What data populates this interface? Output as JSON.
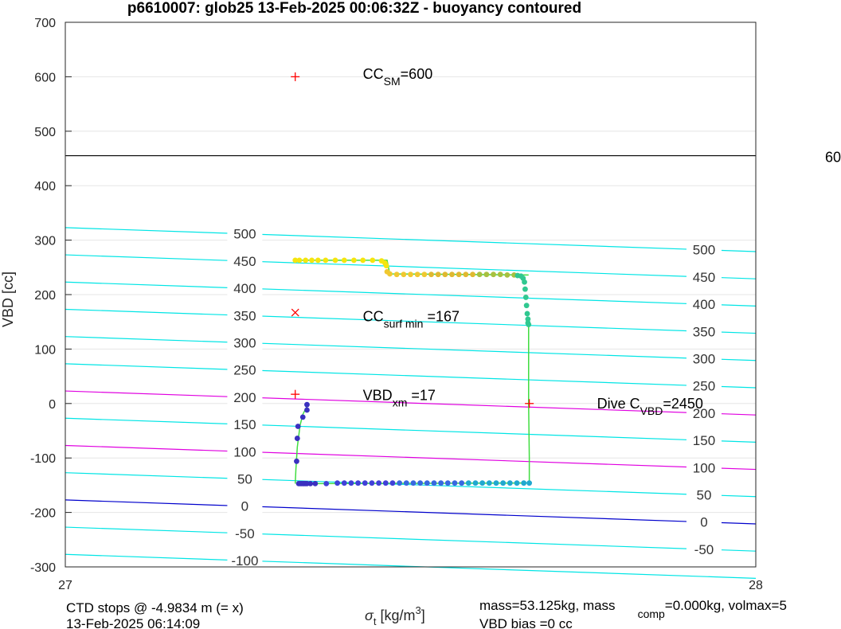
{
  "chart_data": {
    "type": "scatter",
    "title": "p6610007: glob25 13-Feb-2025 00:06:32Z - buoyancy contoured",
    "xlabel": {
      "symbol": "σ",
      "sub": "t",
      "unit_pre": " [kg/m",
      "sup": "3",
      "unit_post": "]"
    },
    "ylabel": "VBD [cc]",
    "xlim": [
      27,
      28
    ],
    "ylim": [
      -300,
      700
    ],
    "xticks": [
      "27",
      "28"
    ],
    "yticks": [
      -300,
      -200,
      -100,
      0,
      100,
      200,
      300,
      400,
      500,
      600,
      700
    ],
    "grid": true,
    "horizontal_line": {
      "y": 455,
      "right_label": "60"
    },
    "contours": [
      {
        "level": "500",
        "y_left": 323,
        "y_right": 279,
        "color": "#00e5e5"
      },
      {
        "level": "450",
        "y_left": 273,
        "y_right": 229,
        "color": "#00e5e5"
      },
      {
        "level": "400",
        "y_left": 223,
        "y_right": 179,
        "color": "#00e5e5"
      },
      {
        "level": "350",
        "y_left": 173,
        "y_right": 129,
        "color": "#00e5e5"
      },
      {
        "level": "300",
        "y_left": 123,
        "y_right": 79,
        "color": "#00e5e5"
      },
      {
        "level": "250",
        "y_left": 73,
        "y_right": 29,
        "color": "#00e5e5"
      },
      {
        "level": "200",
        "y_left": 23,
        "y_right": -21,
        "color": "#e000e0"
      },
      {
        "level": "150",
        "y_left": -27,
        "y_right": -71,
        "color": "#00e5e5"
      },
      {
        "level": "100",
        "y_left": -77,
        "y_right": -121,
        "color": "#e000e0"
      },
      {
        "level": "50",
        "y_left": -127,
        "y_right": -171,
        "color": "#00e5e5"
      },
      {
        "level": "0",
        "y_left": -177,
        "y_right": -221,
        "color": "#0000cc"
      },
      {
        "level": "-50",
        "y_left": -227,
        "y_right": -271,
        "color": "#00e5e5"
      },
      {
        "level": "-100",
        "y_left": -277,
        "y_right": -321,
        "color": "#00e5e5"
      }
    ],
    "contour_label_x": [
      27.26,
      27.925
    ],
    "markers": [
      {
        "x": 27.333,
        "y": 600,
        "symbol": "+",
        "color": "#ff0000"
      },
      {
        "x": 27.333,
        "y": 167,
        "symbol": "x",
        "color": "#ff0000"
      },
      {
        "x": 27.333,
        "y": 17,
        "symbol": "+",
        "color": "#ff0000"
      },
      {
        "x": 27.672,
        "y": 0,
        "symbol": "+",
        "color": "#ff0000"
      }
    ],
    "annotations": [
      {
        "x": 27.431,
        "y": 605,
        "main": "CC",
        "sub": "SM",
        "rest": "=600"
      },
      {
        "x": 27.431,
        "y": 160,
        "main": "CC",
        "sub": "surf min",
        "rest": " =167"
      },
      {
        "x": 27.431,
        "y": 15,
        "main": "VBD",
        "sub": "xm",
        "rest": " =17"
      },
      {
        "x": 27.77,
        "y": 0,
        "main": "Dive C",
        "sub": "VBD",
        "rest": "=2450"
      }
    ],
    "series": [
      {
        "x": [
          27.333,
          27.339,
          27.348,
          27.357,
          27.366,
          27.377,
          27.391,
          27.404,
          27.418,
          27.431,
          27.445,
          27.458,
          27.463,
          27.465
        ],
        "y": [
          263,
          263,
          263,
          263,
          263,
          263,
          263,
          263,
          263,
          263,
          263,
          262,
          258,
          253
        ],
        "color": "#f5e50e"
      },
      {
        "x": [
          27.466,
          27.47,
          27.48,
          27.49,
          27.5,
          27.51,
          27.52
        ],
        "y": [
          242,
          238,
          237,
          237,
          237,
          237,
          237
        ],
        "color": "#f0c830"
      },
      {
        "x": [
          27.53,
          27.54,
          27.55,
          27.56,
          27.57,
          27.58,
          27.59
        ],
        "y": [
          237,
          237,
          237,
          237,
          237,
          237,
          237
        ],
        "color": "#e0b830"
      },
      {
        "x": [
          27.6,
          27.61,
          27.62,
          27.63,
          27.64,
          27.65
        ],
        "y": [
          237,
          237,
          237,
          237,
          236,
          236
        ],
        "color": "#a8c040"
      },
      {
        "x": [
          27.655,
          27.66,
          27.663,
          27.665,
          27.666,
          27.667,
          27.668,
          27.669,
          27.67,
          27.67,
          27.671
        ],
        "y": [
          235,
          234,
          230,
          223,
          210,
          195,
          180,
          165,
          155,
          148,
          145
        ],
        "color": "#30c890"
      },
      {
        "x": [
          27.338,
          27.34,
          27.342,
          27.344,
          27.346,
          27.348,
          27.35,
          27.355,
          27.362
        ],
        "y": [
          -147,
          -147,
          -147,
          -147,
          -147,
          -147,
          -147,
          -147,
          -147
        ],
        "color": "#3a30c0"
      },
      {
        "x": [
          27.335,
          27.336,
          27.337,
          27.344,
          27.35,
          27.35
        ],
        "y": [
          -106,
          -64,
          -42,
          -25,
          -2,
          -12
        ],
        "color": "#3a30c0"
      },
      {
        "x": [
          27.378,
          27.394,
          27.404,
          27.414,
          27.424,
          27.434,
          27.444,
          27.454,
          27.464,
          27.474
        ],
        "y": [
          -147,
          -146,
          -146,
          -146,
          -146,
          -146,
          -146,
          -146,
          -146,
          -146
        ],
        "color": "#4040d8"
      },
      {
        "x": [
          27.484,
          27.494,
          27.504,
          27.514,
          27.524,
          27.534,
          27.544,
          27.554,
          27.564,
          27.574
        ],
        "y": [
          -146,
          -146,
          -146,
          -146,
          -146,
          -146,
          -146,
          -146,
          -146,
          -146
        ],
        "color": "#3868e0"
      },
      {
        "x": [
          27.584,
          27.594,
          27.604,
          27.614,
          27.624,
          27.634,
          27.644,
          27.654,
          27.664,
          27.672
        ],
        "y": [
          -146,
          -146,
          -146,
          -146,
          -146,
          -146,
          -146,
          -146,
          -146,
          -146
        ],
        "color": "#20a8d0"
      }
    ],
    "path_lines": [
      {
        "x": [
          27.671,
          27.671,
          27.672,
          27.672
        ],
        "y": [
          145,
          0,
          -100,
          -146
        ],
        "color": "#40dd40"
      },
      {
        "x": [
          27.333,
          27.334,
          27.336,
          27.34,
          27.344,
          27.35
        ],
        "y": [
          -147,
          -120,
          -80,
          -40,
          -20,
          -5
        ],
        "color": "#40dd40"
      },
      {
        "x": [
          27.362,
          27.672
        ],
        "y": [
          -147,
          -146
        ],
        "color": "#40dd40"
      },
      {
        "x": [
          27.333,
          27.466,
          27.47,
          27.671
        ],
        "y": [
          263,
          263,
          238,
          236
        ],
        "color": "#40dd40"
      }
    ],
    "footer": {
      "left_line1": "CTD stops @ -4.9834 m (= x)",
      "left_line2": "13-Feb-2025 06:14:09",
      "right_line1_a": "mass=53.125kg, mass",
      "right_line1_sub": "comp",
      "right_line1_b": "=0.000kg, volmax=5",
      "right_line2": "VBD bias =0 cc"
    }
  }
}
